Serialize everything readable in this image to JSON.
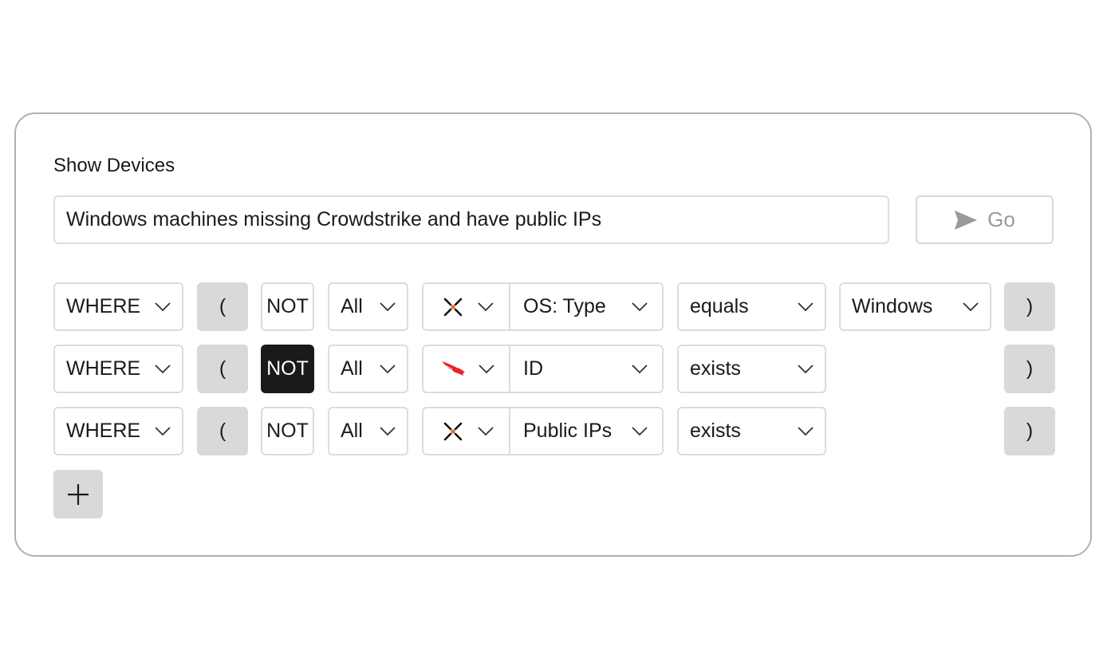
{
  "panel": {
    "title": "Show Devices"
  },
  "query": {
    "value": "Windows machines missing Crowdstrike and have public IPs",
    "go_label": "Go",
    "go_icon": "send-icon"
  },
  "rows": [
    {
      "clause": "WHERE",
      "open": "(",
      "not": "NOT",
      "not_active": false,
      "quantifier": "All",
      "source_icon": "axonius-adapter-icon",
      "field": "OS: Type",
      "operator": "equals",
      "value": "Windows",
      "close": ")"
    },
    {
      "clause": "WHERE",
      "open": "(",
      "not": "NOT",
      "not_active": true,
      "quantifier": "All",
      "source_icon": "crowdstrike-falcon-icon",
      "field": "ID",
      "operator": "exists",
      "close": ")"
    },
    {
      "clause": "WHERE",
      "open": "(",
      "not": "NOT",
      "not_active": false,
      "quantifier": "All",
      "source_icon": "axonius-adapter-icon",
      "field": "Public IPs",
      "operator": "exists",
      "close": ")"
    }
  ],
  "add_icon": "plus-icon",
  "colors": {
    "not_active_bg": "#1a1a1a",
    "toggle_bg": "#d9d9d9",
    "crowdstrike": "#e8262a",
    "accent_dot": "#f26a1b"
  }
}
